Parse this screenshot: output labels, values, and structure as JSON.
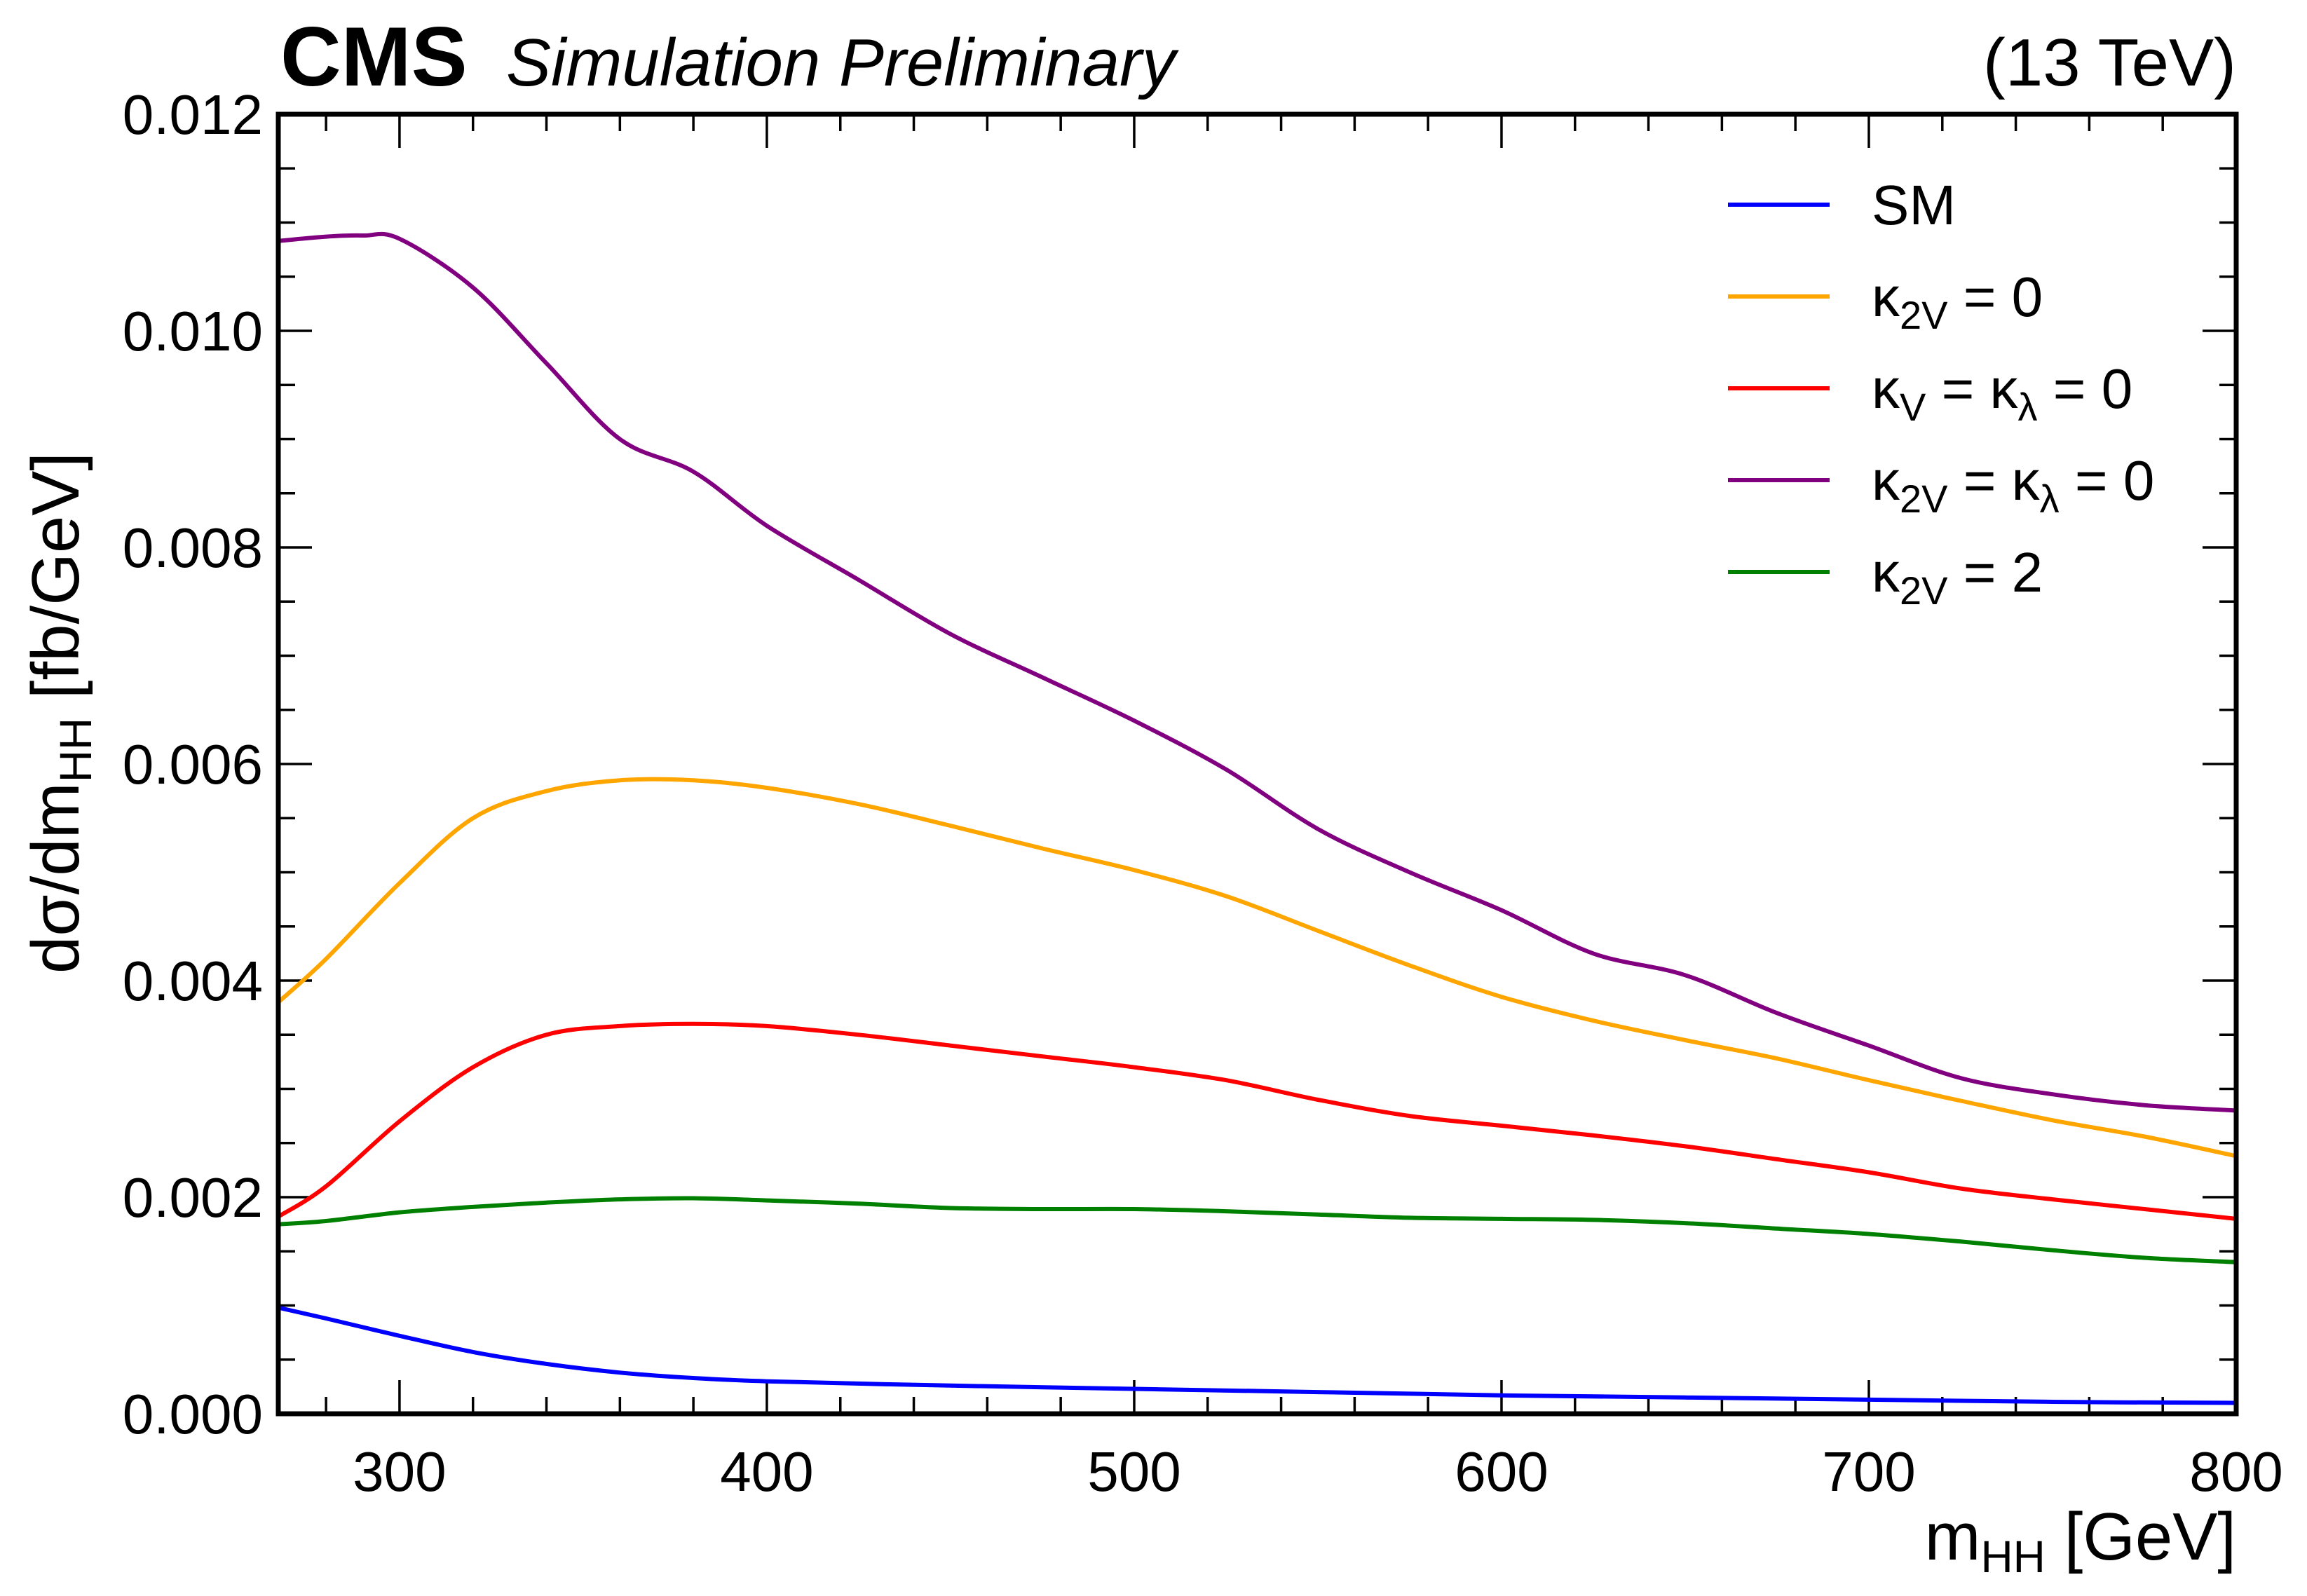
{
  "header": {
    "cms": "CMS",
    "subtitle": "Simulation Preliminary",
    "energy": "(13 TeV)"
  },
  "chart_data": {
    "type": "line",
    "xlabel": {
      "main": "m",
      "sub": "HH",
      "rest": " [GeV]"
    },
    "ylabel": {
      "main": "dσ/dm",
      "sub": "HH",
      "rest": " [fb/GeV]"
    },
    "xlim": [
      267,
      800
    ],
    "ylim": [
      0,
      0.012
    ],
    "xticks": [
      "300",
      "400",
      "500",
      "600",
      "700",
      "800"
    ],
    "xtick_values": [
      300,
      400,
      500,
      600,
      700,
      800
    ],
    "yticks": [
      "0.000",
      "0.002",
      "0.004",
      "0.006",
      "0.008",
      "0.010",
      "0.012"
    ],
    "ytick_values": [
      0,
      0.002,
      0.004,
      0.006,
      0.008,
      0.01,
      0.012
    ],
    "x_minor_step": 20,
    "y_minor_step": 0.0005,
    "legend_position": "top-right",
    "series": [
      {
        "name": "SM",
        "legend": {
          "parts": [
            {
              "t": "SM"
            }
          ]
        },
        "color": "#0000ff",
        "x": [
          267,
          280,
          300,
          320,
          340,
          360,
          380,
          400,
          450,
          500,
          550,
          600,
          650,
          700,
          750,
          800
        ],
        "y": [
          0.00098,
          0.00088,
          0.00072,
          0.00057,
          0.00046,
          0.00038,
          0.00033,
          0.0003,
          0.00026,
          0.00023,
          0.0002,
          0.00017,
          0.00015,
          0.00013,
          0.00011,
          0.0001
        ]
      },
      {
        "name": "κ2V = 0",
        "legend": {
          "parts": [
            {
              "t": "κ"
            },
            {
              "t": "2V",
              "sub": true
            },
            {
              "t": " = 0"
            }
          ]
        },
        "color": "#ffa500",
        "x": [
          267,
          280,
          300,
          320,
          340,
          360,
          380,
          400,
          425,
          450,
          475,
          500,
          525,
          550,
          575,
          600,
          625,
          650,
          675,
          700,
          725,
          750,
          775,
          800
        ],
        "y": [
          0.0038,
          0.0042,
          0.0049,
          0.0055,
          0.00575,
          0.00585,
          0.00585,
          0.00578,
          0.00563,
          0.00543,
          0.00522,
          0.00502,
          0.00478,
          0.00446,
          0.00414,
          0.00385,
          0.00363,
          0.00345,
          0.00328,
          0.00308,
          0.00289,
          0.00271,
          0.00256,
          0.00238
        ]
      },
      {
        "name": "κV = κλ = 0",
        "legend": {
          "parts": [
            {
              "t": "κ"
            },
            {
              "t": "V",
              "sub": true
            },
            {
              "t": " = κ"
            },
            {
              "t": "λ",
              "sub": true
            },
            {
              "t": " = 0"
            }
          ]
        },
        "color": "#ff0000",
        "x": [
          267,
          280,
          300,
          320,
          340,
          360,
          380,
          400,
          425,
          450,
          475,
          500,
          525,
          550,
          575,
          600,
          625,
          650,
          675,
          700,
          725,
          750,
          775,
          800
        ],
        "y": [
          0.00182,
          0.0021,
          0.0027,
          0.0032,
          0.0035,
          0.00358,
          0.0036,
          0.00358,
          0.0035,
          0.0034,
          0.0033,
          0.0032,
          0.00308,
          0.0029,
          0.00275,
          0.00266,
          0.00257,
          0.00247,
          0.00235,
          0.00223,
          0.00208,
          0.00198,
          0.00189,
          0.0018
        ]
      },
      {
        "name": "κ2V = κλ = 0",
        "legend": {
          "parts": [
            {
              "t": "κ"
            },
            {
              "t": "2V",
              "sub": true
            },
            {
              "t": " = κ"
            },
            {
              "t": "λ",
              "sub": true
            },
            {
              "t": " = 0"
            }
          ]
        },
        "color": "#800080",
        "x": [
          267,
          280,
          290,
          300,
          320,
          340,
          360,
          380,
          400,
          425,
          450,
          475,
          500,
          525,
          550,
          575,
          600,
          625,
          650,
          675,
          700,
          725,
          750,
          775,
          800
        ],
        "y": [
          0.01083,
          0.01087,
          0.01088,
          0.01085,
          0.0104,
          0.0097,
          0.009,
          0.0087,
          0.0082,
          0.0077,
          0.0072,
          0.0068,
          0.0064,
          0.00595,
          0.0054,
          0.005,
          0.00465,
          0.00425,
          0.00405,
          0.0037,
          0.0034,
          0.0031,
          0.00295,
          0.00285,
          0.0028
        ]
      },
      {
        "name": "κ2V = 2",
        "legend": {
          "parts": [
            {
              "t": "κ"
            },
            {
              "t": "2V",
              "sub": true
            },
            {
              "t": " = 2"
            }
          ]
        },
        "color": "#008000",
        "x": [
          267,
          280,
          300,
          320,
          340,
          360,
          380,
          400,
          425,
          450,
          475,
          500,
          525,
          550,
          575,
          600,
          625,
          650,
          675,
          700,
          725,
          750,
          775,
          800
        ],
        "y": [
          0.00175,
          0.00178,
          0.00186,
          0.00191,
          0.00195,
          0.00198,
          0.00199,
          0.00197,
          0.00194,
          0.0019,
          0.00189,
          0.00189,
          0.00187,
          0.00184,
          0.00181,
          0.0018,
          0.00179,
          0.00176,
          0.00171,
          0.00166,
          0.00159,
          0.00151,
          0.00144,
          0.0014
        ]
      }
    ]
  }
}
